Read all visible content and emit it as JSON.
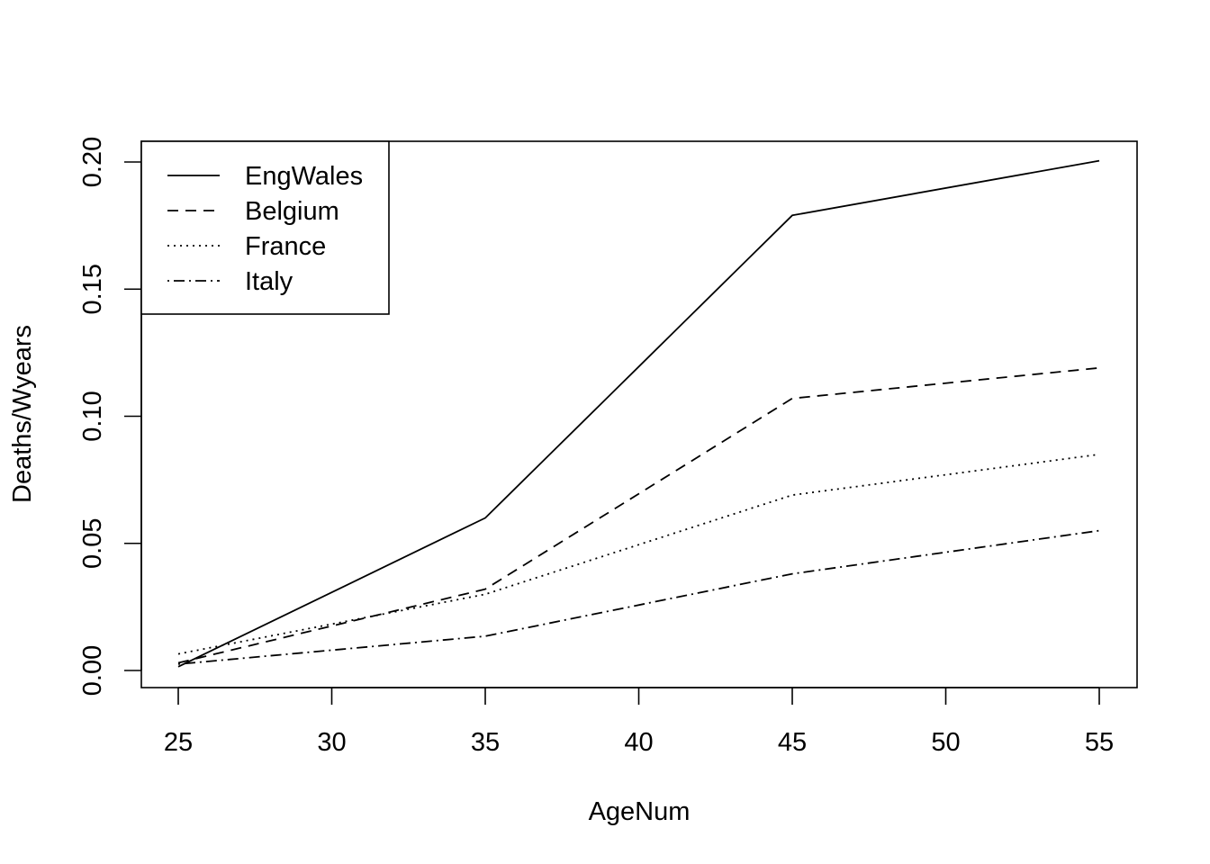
{
  "chart_data": {
    "type": "line",
    "title": "",
    "xlabel": "AgeNum",
    "ylabel": "Deaths/Wyears",
    "xlim": [
      25,
      55
    ],
    "ylim": [
      0,
      0.2
    ],
    "x": [
      25,
      35,
      45,
      55
    ],
    "x_ticks": [
      "25",
      "30",
      "35",
      "40",
      "45",
      "50",
      "55"
    ],
    "y_ticks": [
      "0.00",
      "0.05",
      "0.10",
      "0.15",
      "0.20"
    ],
    "grid": false,
    "legend_position": "top-left",
    "series": [
      {
        "name": "EngWales",
        "line_style": "solid",
        "values": [
          0.0015,
          0.06,
          0.179,
          0.2005
        ]
      },
      {
        "name": "Belgium",
        "line_style": "dashed",
        "values": [
          0.003,
          0.032,
          0.107,
          0.119
        ]
      },
      {
        "name": "France",
        "line_style": "dotted",
        "values": [
          0.0065,
          0.03,
          0.069,
          0.085
        ]
      },
      {
        "name": "Italy",
        "line_style": "dotdash",
        "values": [
          0.0025,
          0.0135,
          0.038,
          0.055
        ]
      }
    ],
    "colors": {
      "line": "#000000",
      "background": "#ffffff"
    }
  }
}
